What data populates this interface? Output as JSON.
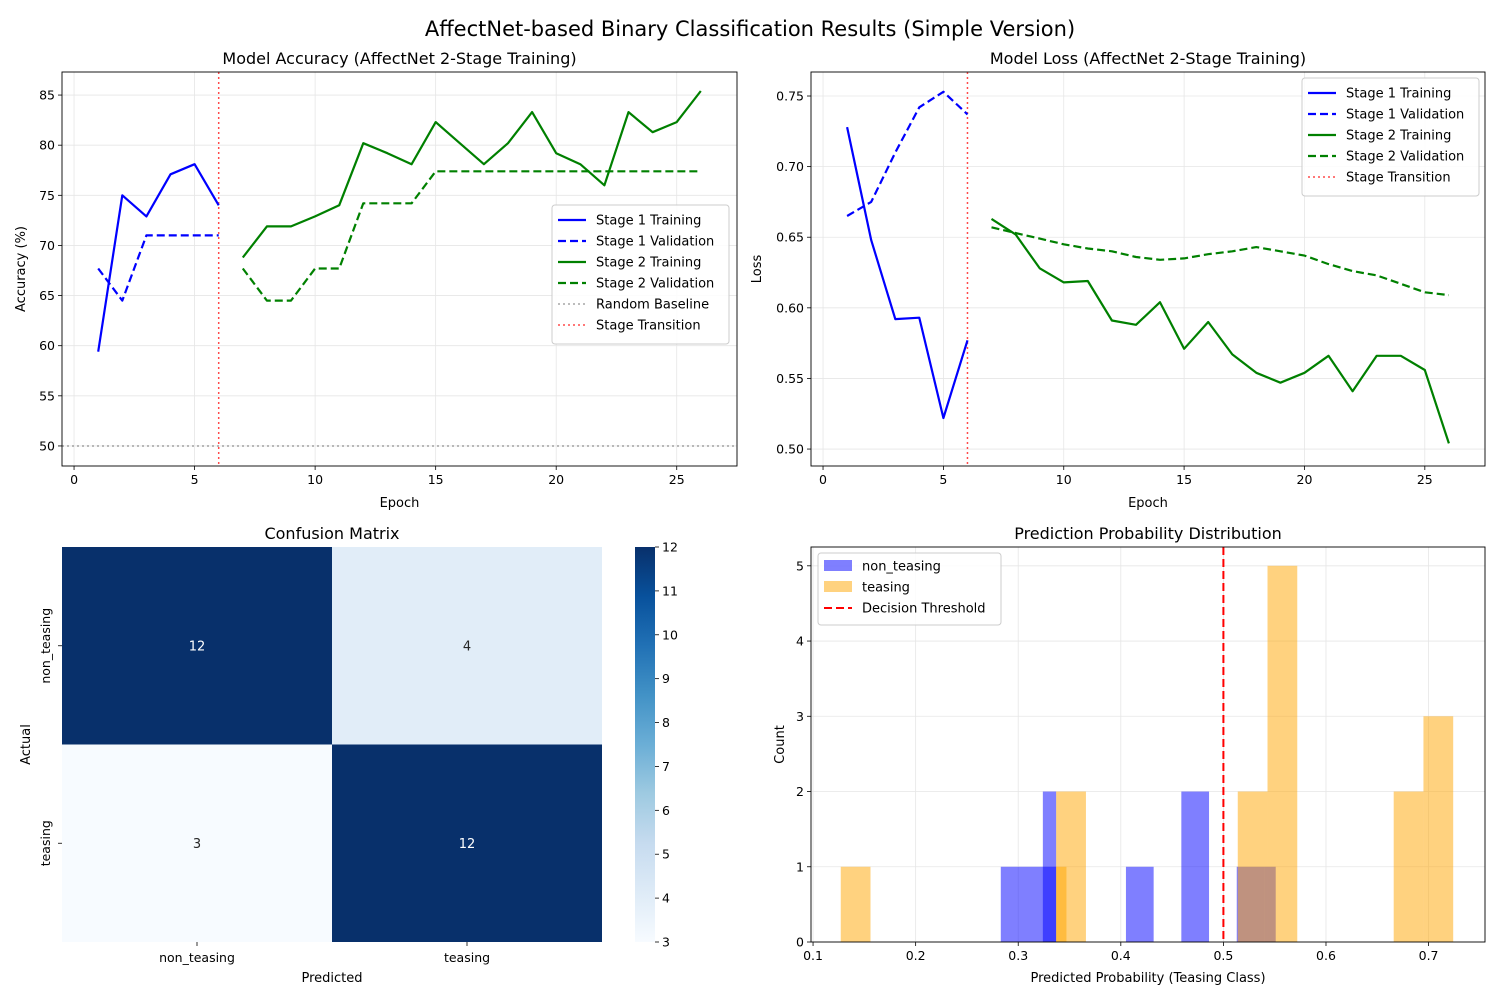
{
  "suptitle": "AffectNet-based Binary Classification Results (Simple Version)",
  "chart_data": [
    {
      "type": "line",
      "title": "Model Accuracy (AffectNet 2-Stage Training)",
      "xlabel": "Epoch",
      "ylabel": "Accuracy (%)",
      "xlim": [
        -0.5,
        27.5
      ],
      "ylim": [
        48,
        87.3
      ],
      "xticks": [
        0,
        5,
        10,
        15,
        20,
        25
      ],
      "yticks": [
        50,
        55,
        60,
        65,
        70,
        75,
        80,
        85
      ],
      "grid": true,
      "legend_position": "center-right",
      "series": [
        {
          "name": "Stage 1 Training",
          "color": "#0000ff",
          "dash": "solid",
          "x": [
            1,
            2,
            3,
            4,
            5,
            6
          ],
          "y": [
            59.4,
            75.0,
            72.9,
            77.1,
            78.1,
            74.0
          ]
        },
        {
          "name": "Stage 1 Validation",
          "color": "#0000ff",
          "dash": "dashed",
          "x": [
            1,
            2,
            3,
            4,
            5,
            6
          ],
          "y": [
            67.7,
            64.5,
            71.0,
            71.0,
            71.0,
            71.0
          ]
        },
        {
          "name": "Stage 2 Training",
          "color": "#008000",
          "dash": "solid",
          "x": [
            7,
            8,
            9,
            10,
            11,
            12,
            13,
            14,
            15,
            16,
            17,
            18,
            19,
            20,
            21,
            22,
            23,
            24,
            25,
            26
          ],
          "y": [
            68.8,
            71.9,
            71.9,
            72.9,
            74.0,
            80.2,
            79.2,
            78.1,
            82.3,
            80.2,
            78.1,
            80.2,
            83.3,
            79.2,
            78.1,
            76.0,
            83.3,
            81.3,
            82.3,
            85.4
          ]
        },
        {
          "name": "Stage 2 Validation",
          "color": "#008000",
          "dash": "dashed",
          "x": [
            7,
            8,
            9,
            10,
            11,
            12,
            13,
            14,
            15,
            16,
            17,
            18,
            19,
            20,
            21,
            22,
            23,
            24,
            25,
            26
          ],
          "y": [
            67.7,
            64.5,
            64.5,
            67.7,
            67.7,
            74.2,
            74.2,
            74.2,
            77.4,
            77.4,
            77.4,
            77.4,
            77.4,
            77.4,
            77.4,
            77.4,
            77.4,
            77.4,
            77.4,
            77.4
          ]
        }
      ],
      "hlines": [
        {
          "name": "Random Baseline",
          "y": 50,
          "color": "#808080",
          "dash": "dotted"
        }
      ],
      "vlines": [
        {
          "name": "Stage Transition",
          "x": 6,
          "color": "#ff0000",
          "dash": "dotted"
        }
      ]
    },
    {
      "type": "line",
      "title": "Model Loss (AffectNet 2-Stage Training)",
      "xlabel": "Epoch",
      "ylabel": "Loss",
      "xlim": [
        -0.5,
        27.5
      ],
      "ylim": [
        0.488,
        0.767
      ],
      "xticks": [
        0,
        5,
        10,
        15,
        20,
        25
      ],
      "yticks": [
        0.5,
        0.55,
        0.6,
        0.65,
        0.7,
        0.75
      ],
      "ytick_labels": [
        "0.50",
        "0.55",
        "0.60",
        "0.65",
        "0.70",
        "0.75"
      ],
      "grid": true,
      "legend_position": "top-right",
      "series": [
        {
          "name": "Stage 1 Training",
          "color": "#0000ff",
          "dash": "solid",
          "x": [
            1,
            2,
            3,
            4,
            5,
            6
          ],
          "y": [
            0.728,
            0.648,
            0.592,
            0.593,
            0.522,
            0.577
          ]
        },
        {
          "name": "Stage 1 Validation",
          "color": "#0000ff",
          "dash": "dashed",
          "x": [
            1,
            2,
            3,
            4,
            5,
            6
          ],
          "y": [
            0.665,
            0.675,
            0.71,
            0.742,
            0.753,
            0.737
          ]
        },
        {
          "name": "Stage 2 Training",
          "color": "#008000",
          "dash": "solid",
          "x": [
            7,
            8,
            9,
            10,
            11,
            12,
            13,
            14,
            15,
            16,
            17,
            18,
            19,
            20,
            21,
            22,
            23,
            24,
            25,
            26
          ],
          "y": [
            0.663,
            0.652,
            0.628,
            0.618,
            0.619,
            0.591,
            0.588,
            0.604,
            0.571,
            0.59,
            0.567,
            0.554,
            0.547,
            0.554,
            0.566,
            0.541,
            0.566,
            0.566,
            0.556,
            0.504
          ]
        },
        {
          "name": "Stage 2 Validation",
          "color": "#008000",
          "dash": "dashed",
          "x": [
            7,
            8,
            9,
            10,
            11,
            12,
            13,
            14,
            15,
            16,
            17,
            18,
            19,
            20,
            21,
            22,
            23,
            24,
            25,
            26
          ],
          "y": [
            0.657,
            0.653,
            0.649,
            0.645,
            0.642,
            0.64,
            0.636,
            0.634,
            0.635,
            0.638,
            0.64,
            0.643,
            0.64,
            0.637,
            0.631,
            0.626,
            0.623,
            0.617,
            0.611,
            0.609
          ]
        }
      ],
      "vlines": [
        {
          "name": "Stage Transition",
          "x": 6,
          "color": "#ff0000",
          "dash": "dotted"
        }
      ]
    },
    {
      "type": "heatmap",
      "title": "Confusion Matrix",
      "xlabel": "Predicted",
      "ylabel": "Actual",
      "x_categories": [
        "non_teasing",
        "teasing"
      ],
      "y_categories": [
        "non_teasing",
        "teasing"
      ],
      "values": [
        [
          12,
          4
        ],
        [
          3,
          12
        ]
      ],
      "colorbar": {
        "min": 3,
        "max": 12,
        "ticks": [
          3,
          4,
          5,
          6,
          7,
          8,
          9,
          10,
          11,
          12
        ]
      },
      "colormap": [
        "#f7fbff",
        "#deebf7",
        "#c6dbef",
        "#9ecae1",
        "#6baed6",
        "#4292c6",
        "#2171b5",
        "#08519c",
        "#08306b"
      ]
    },
    {
      "type": "bar",
      "title": "Prediction Probability Distribution",
      "xlabel": "Predicted Probability (Teasing Class)",
      "ylabel": "Count",
      "xlim": [
        0.098,
        0.755
      ],
      "ylim": [
        0,
        5.25
      ],
      "xticks": [
        0.1,
        0.2,
        0.3,
        0.4,
        0.5,
        0.6,
        0.7
      ],
      "yticks": [
        0,
        1,
        2,
        3,
        4,
        5
      ],
      "grid": true,
      "legend_position": "top-left",
      "series": [
        {
          "name": "non_teasing",
          "color": "#0000ff",
          "opacity": 0.5,
          "bins": [
            [
              0.283,
              0.31,
              1
            ],
            [
              0.31,
              0.337,
              1
            ],
            [
              0.337,
              0.33,
              0
            ],
            [
              0.324,
              0.337,
              2
            ],
            [
              0.405,
              0.432,
              1
            ],
            [
              0.459,
              0.486,
              2
            ],
            [
              0.486,
              0.513,
              0
            ],
            [
              0.513,
              0.54,
              1
            ],
            [
              0.54,
              0.551,
              1
            ]
          ]
        },
        {
          "name": "teasing",
          "color": "#ffa500",
          "opacity": 0.5,
          "bins": [
            [
              0.127,
              0.156,
              1
            ],
            [
              0.337,
              0.366,
              2
            ],
            [
              0.337,
              0.347,
              1
            ],
            [
              0.514,
              0.543,
              2
            ],
            [
              0.543,
              0.572,
              5
            ],
            [
              0.666,
              0.695,
              2
            ],
            [
              0.695,
              0.724,
              3
            ]
          ]
        }
      ],
      "vlines": [
        {
          "name": "Decision Threshold",
          "x": 0.5,
          "color": "#ff0000",
          "dash": "dashed"
        }
      ]
    }
  ]
}
